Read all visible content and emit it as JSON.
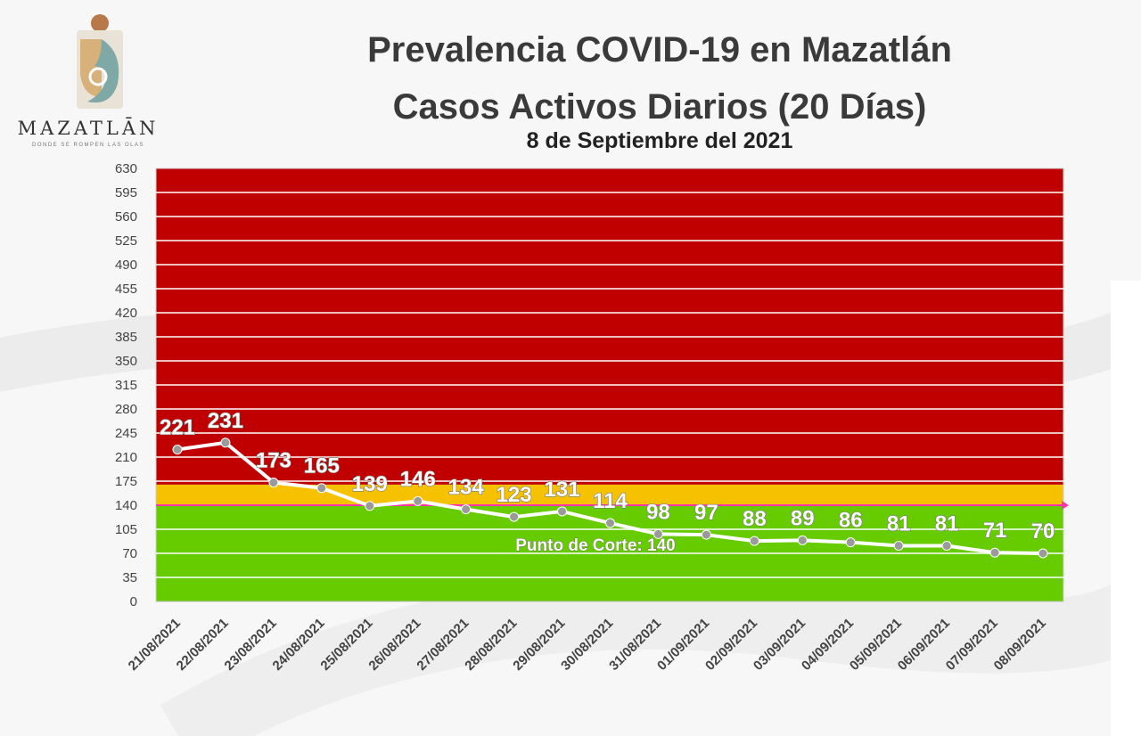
{
  "logo": {
    "name": "MAZATLĀN",
    "tagline": "DONDE SE ROMPEN LAS OLAS",
    "colors": {
      "teal": "#7fa9a6",
      "gold": "#d8b079",
      "brown": "#b8794a"
    }
  },
  "header": {
    "title": "Prevalencia COVID-19 en Mazatlán",
    "subtitle": "Casos Activos Diarios (20 Días)",
    "date": "8 de Septiembre del 2021"
  },
  "chart_data": {
    "type": "line",
    "title": "Prevalencia COVID-19 en Mazatlán",
    "subtitle": "Casos Activos Diarios (20 Días)",
    "xlabel": "",
    "ylabel": "",
    "ylim": [
      0,
      630
    ],
    "yticks": [
      0,
      35,
      70,
      105,
      140,
      175,
      210,
      245,
      280,
      315,
      350,
      385,
      420,
      455,
      490,
      525,
      560,
      595,
      630
    ],
    "grid": true,
    "legend": "none",
    "categories": [
      "21/08/2021",
      "22/08/2021",
      "23/08/2021",
      "24/08/2021",
      "25/08/2021",
      "26/08/2021",
      "27/08/2021",
      "28/08/2021",
      "29/08/2021",
      "30/08/2021",
      "31/08/2021",
      "01/09/2021",
      "02/09/2021",
      "03/09/2021",
      "04/09/2021",
      "05/09/2021",
      "06/09/2021",
      "07/09/2021",
      "08/09/2021"
    ],
    "series": [
      {
        "values": [
          221,
          231,
          173,
          165,
          139,
          146,
          134,
          123,
          131,
          114,
          98,
          97,
          88,
          89,
          86,
          81,
          81,
          71,
          70
        ]
      }
    ],
    "zones": [
      {
        "from": 0,
        "to": 140,
        "color": "#66cc00"
      },
      {
        "from": 140,
        "to": 170,
        "color": "#f6c200"
      },
      {
        "from": 170,
        "to": 630,
        "color": "#c00000"
      }
    ],
    "threshold": {
      "value": 140,
      "label": "Punto de Corte: 140",
      "color": "#ff33aa"
    },
    "line_color": "#ffffff",
    "marker_color": "#9a9a9a"
  }
}
